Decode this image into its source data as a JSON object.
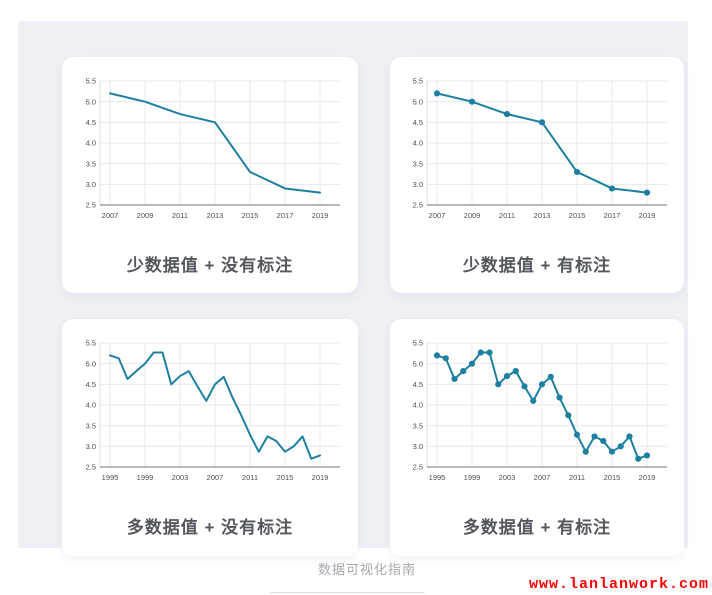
{
  "page": {
    "caption": "数据可视化指南",
    "watermark": "www.lanlanwork.com"
  },
  "colors": {
    "line": "#1d80a0",
    "marker": "#1d80a0",
    "panel_bg": "#eef0f5",
    "grid": "#e8eaef",
    "axis_bottom": "#8a9097",
    "axis_left": "#d9dce1",
    "tick_label": "#4a4f55",
    "watermark_red": "#ff0000"
  },
  "chart_data": [
    {
      "type": "line",
      "title": "少数据值 + 没有标注",
      "markers": false,
      "x": [
        2007,
        2009,
        2011,
        2013,
        2015,
        2017,
        2019
      ],
      "values": [
        5.2,
        5.0,
        4.7,
        4.5,
        3.3,
        2.9,
        2.8
      ],
      "xticks": [
        2007,
        2009,
        2011,
        2013,
        2015,
        2017,
        2019
      ],
      "yticks": [
        2.5,
        3.0,
        3.5,
        4.0,
        4.5,
        5.0,
        5.5
      ],
      "ylim": [
        2.5,
        5.5
      ],
      "grid": true,
      "legend": "none"
    },
    {
      "type": "line",
      "title": "少数据值 + 有标注",
      "markers": true,
      "x": [
        2007,
        2009,
        2011,
        2013,
        2015,
        2017,
        2019
      ],
      "values": [
        5.2,
        5.0,
        4.7,
        4.5,
        3.3,
        2.9,
        2.8
      ],
      "xticks": [
        2007,
        2009,
        2011,
        2013,
        2015,
        2017,
        2019
      ],
      "yticks": [
        2.5,
        3.0,
        3.5,
        4.0,
        4.5,
        5.0,
        5.5
      ],
      "ylim": [
        2.5,
        5.5
      ],
      "grid": true,
      "legend": "none"
    },
    {
      "type": "line",
      "title": "多数据值 + 没有标注",
      "markers": false,
      "x": [
        1995,
        1996,
        1997,
        1998,
        1999,
        2000,
        2001,
        2002,
        2003,
        2004,
        2005,
        2006,
        2007,
        2008,
        2009,
        2010,
        2011,
        2012,
        2013,
        2014,
        2015,
        2016,
        2017,
        2018,
        2019
      ],
      "values": [
        5.2,
        5.13,
        4.63,
        4.82,
        5.0,
        5.27,
        5.27,
        4.5,
        4.7,
        4.82,
        4.45,
        4.1,
        4.5,
        4.68,
        4.18,
        3.75,
        3.28,
        2.87,
        3.24,
        3.13,
        2.87,
        3.0,
        3.24,
        2.7,
        2.78
      ],
      "xticks": [
        1995,
        1999,
        2003,
        2007,
        2011,
        2015,
        2019
      ],
      "yticks": [
        2.5,
        3.0,
        3.5,
        4.0,
        4.5,
        5.0,
        5.5
      ],
      "ylim": [
        2.5,
        5.5
      ],
      "grid": true,
      "legend": "none"
    },
    {
      "type": "line",
      "title": "多数据值 + 有标注",
      "markers": true,
      "x": [
        1995,
        1996,
        1997,
        1998,
        1999,
        2000,
        2001,
        2002,
        2003,
        2004,
        2005,
        2006,
        2007,
        2008,
        2009,
        2010,
        2011,
        2012,
        2013,
        2014,
        2015,
        2016,
        2017,
        2018,
        2019
      ],
      "values": [
        5.2,
        5.13,
        4.63,
        4.82,
        5.0,
        5.27,
        5.27,
        4.5,
        4.7,
        4.82,
        4.45,
        4.1,
        4.5,
        4.68,
        4.18,
        3.75,
        3.28,
        2.87,
        3.24,
        3.13,
        2.87,
        3.0,
        3.24,
        2.7,
        2.78
      ],
      "xticks": [
        1995,
        1999,
        2003,
        2007,
        2011,
        2015,
        2019
      ],
      "yticks": [
        2.5,
        3.0,
        3.5,
        4.0,
        4.5,
        5.0,
        5.5
      ],
      "ylim": [
        2.5,
        5.5
      ],
      "grid": true,
      "legend": "none"
    }
  ]
}
